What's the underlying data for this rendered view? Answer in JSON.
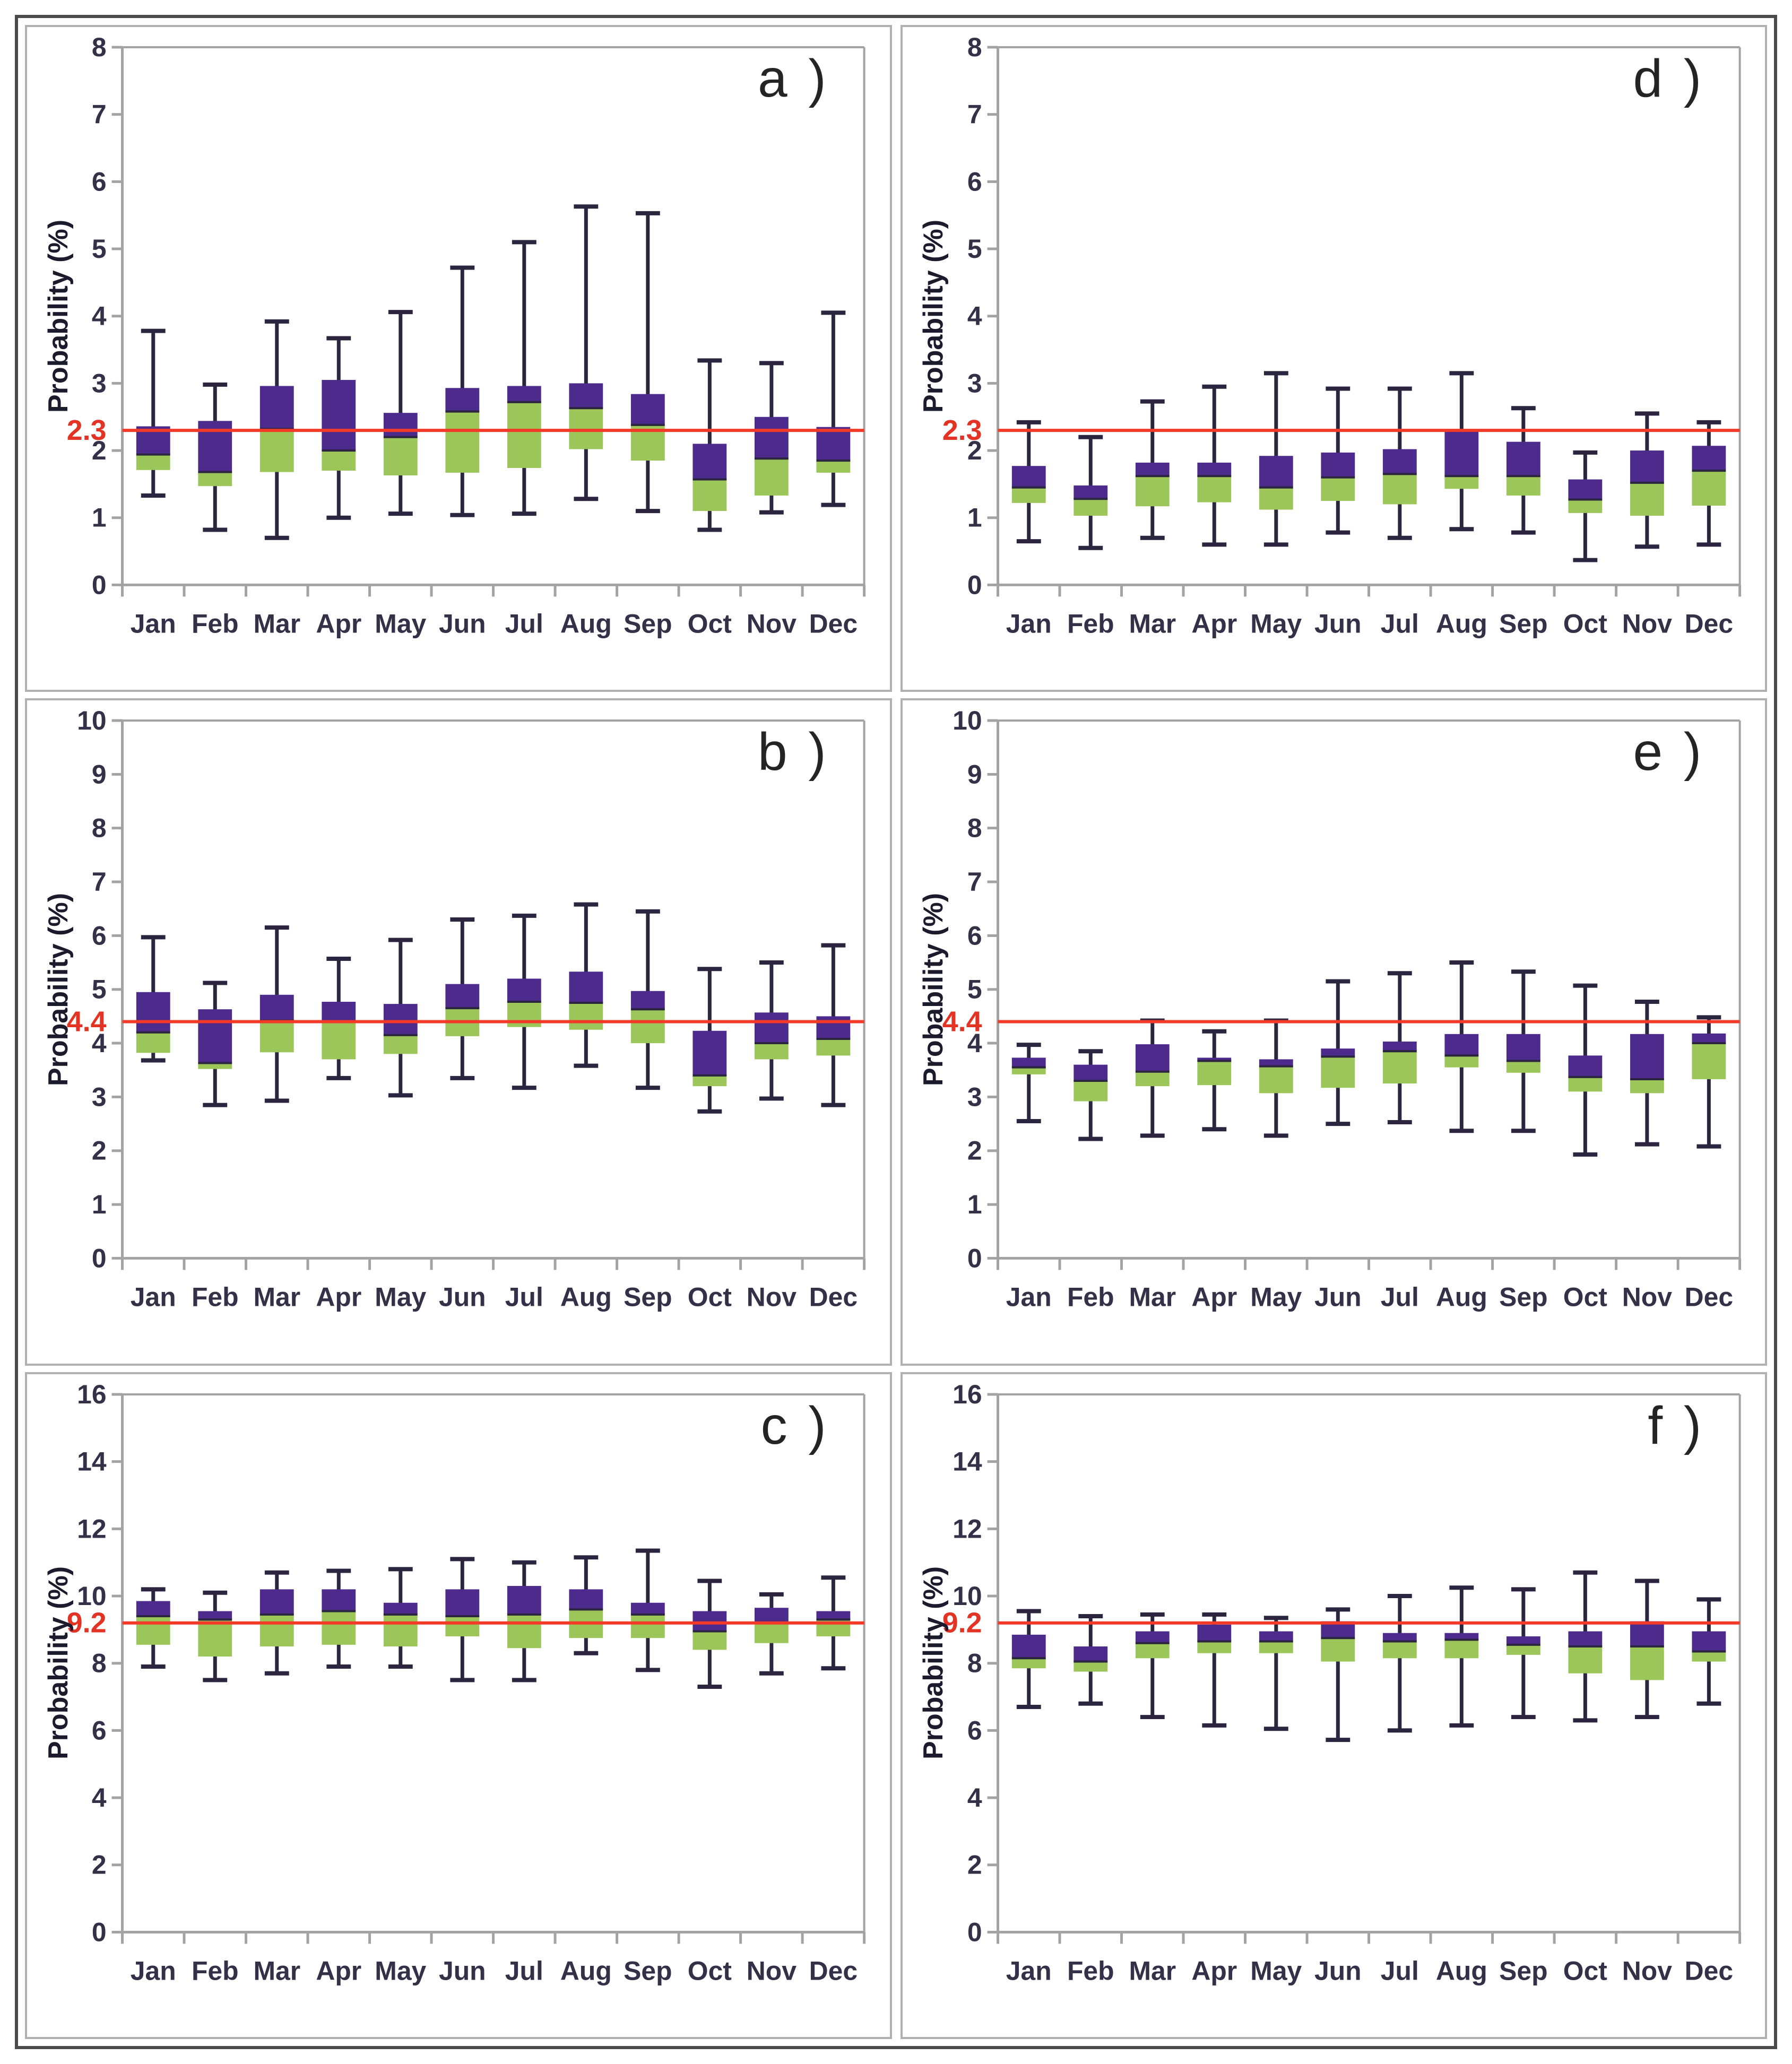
{
  "figure": {
    "colors": {
      "box_upper": "#4d2b8c",
      "box_lower": "#9cc659",
      "whisker": "#2b2540",
      "axis": "#a3a3a3",
      "tick_text": "#333047",
      "ref_line": "#f33a28",
      "ref_text": "#e23325",
      "panel_border": "#b0b0b0",
      "outer_border": "#4b4b4b"
    }
  },
  "chart_data": [
    {
      "type": "box",
      "panel_label": "a )",
      "ylabel": "Probability (%)",
      "ylim": [
        0,
        8
      ],
      "yticks": [
        0,
        1,
        2,
        3,
        4,
        5,
        6,
        7,
        8
      ],
      "ref_line": {
        "value": 2.3,
        "label": "2.3"
      },
      "categories": [
        "Jan",
        "Feb",
        "Mar",
        "Apr",
        "May",
        "Jun",
        "Jul",
        "Aug",
        "Sep",
        "Oct",
        "Nov",
        "Dec"
      ],
      "boxes": [
        {
          "low": 1.33,
          "q1": 1.71,
          "median": 1.94,
          "q3": 2.36,
          "high": 3.78
        },
        {
          "low": 0.82,
          "q1": 1.47,
          "median": 1.68,
          "q3": 2.44,
          "high": 2.98
        },
        {
          "low": 0.7,
          "q1": 1.68,
          "median": 2.32,
          "q3": 2.96,
          "high": 3.92
        },
        {
          "low": 1.0,
          "q1": 1.7,
          "median": 2.0,
          "q3": 3.05,
          "high": 3.67
        },
        {
          "low": 1.06,
          "q1": 1.63,
          "median": 2.2,
          "q3": 2.56,
          "high": 4.06
        },
        {
          "low": 1.04,
          "q1": 1.67,
          "median": 2.58,
          "q3": 2.93,
          "high": 4.72
        },
        {
          "low": 1.06,
          "q1": 1.74,
          "median": 2.72,
          "q3": 2.96,
          "high": 5.1
        },
        {
          "low": 1.28,
          "q1": 2.02,
          "median": 2.63,
          "q3": 3.0,
          "high": 5.63
        },
        {
          "low": 1.1,
          "q1": 1.85,
          "median": 2.38,
          "q3": 2.84,
          "high": 5.53
        },
        {
          "low": 0.82,
          "q1": 1.1,
          "median": 1.57,
          "q3": 2.1,
          "high": 3.34
        },
        {
          "low": 1.08,
          "q1": 1.33,
          "median": 1.88,
          "q3": 2.5,
          "high": 3.3
        },
        {
          "low": 1.19,
          "q1": 1.67,
          "median": 1.85,
          "q3": 2.35,
          "high": 4.05
        }
      ]
    },
    {
      "type": "box",
      "panel_label": "d )",
      "ylabel": "Probability (%)",
      "ylim": [
        0,
        8
      ],
      "yticks": [
        0,
        1,
        2,
        3,
        4,
        5,
        6,
        7,
        8
      ],
      "ref_line": {
        "value": 2.3,
        "label": "2.3"
      },
      "categories": [
        "Jan",
        "Feb",
        "Mar",
        "Apr",
        "May",
        "Jun",
        "Jul",
        "Aug",
        "Sep",
        "Oct",
        "Nov",
        "Dec"
      ],
      "boxes": [
        {
          "low": 0.65,
          "q1": 1.22,
          "median": 1.45,
          "q3": 1.77,
          "high": 2.42
        },
        {
          "low": 0.55,
          "q1": 1.03,
          "median": 1.28,
          "q3": 1.48,
          "high": 2.2
        },
        {
          "low": 0.7,
          "q1": 1.17,
          "median": 1.62,
          "q3": 1.82,
          "high": 2.73
        },
        {
          "low": 0.6,
          "q1": 1.23,
          "median": 1.62,
          "q3": 1.82,
          "high": 2.95
        },
        {
          "low": 0.6,
          "q1": 1.12,
          "median": 1.45,
          "q3": 1.92,
          "high": 3.15
        },
        {
          "low": 0.78,
          "q1": 1.25,
          "median": 1.6,
          "q3": 1.97,
          "high": 2.92
        },
        {
          "low": 0.7,
          "q1": 1.2,
          "median": 1.65,
          "q3": 2.02,
          "high": 2.92
        },
        {
          "low": 0.83,
          "q1": 1.43,
          "median": 1.62,
          "q3": 2.3,
          "high": 3.15
        },
        {
          "low": 0.78,
          "q1": 1.33,
          "median": 1.62,
          "q3": 2.13,
          "high": 2.63
        },
        {
          "low": 0.37,
          "q1": 1.07,
          "median": 1.27,
          "q3": 1.57,
          "high": 1.97
        },
        {
          "low": 0.57,
          "q1": 1.03,
          "median": 1.52,
          "q3": 2.0,
          "high": 2.55
        },
        {
          "low": 0.6,
          "q1": 1.18,
          "median": 1.7,
          "q3": 2.07,
          "high": 2.42
        }
      ]
    },
    {
      "type": "box",
      "panel_label": "b )",
      "ylabel": "Probability (%)",
      "ylim": [
        0,
        10
      ],
      "yticks": [
        0,
        1,
        2,
        3,
        4,
        5,
        6,
        7,
        8,
        9,
        10
      ],
      "ref_line": {
        "value": 4.4,
        "label": "4.4"
      },
      "categories": [
        "Jan",
        "Feb",
        "Mar",
        "Apr",
        "May",
        "Jun",
        "Jul",
        "Aug",
        "Sep",
        "Oct",
        "Nov",
        "Dec"
      ],
      "boxes": [
        {
          "low": 3.68,
          "q1": 3.82,
          "median": 4.2,
          "q3": 4.95,
          "high": 5.97
        },
        {
          "low": 2.85,
          "q1": 3.52,
          "median": 3.63,
          "q3": 4.63,
          "high": 5.12
        },
        {
          "low": 2.93,
          "q1": 3.83,
          "median": 4.42,
          "q3": 4.9,
          "high": 6.15
        },
        {
          "low": 3.35,
          "q1": 3.7,
          "median": 4.4,
          "q3": 4.77,
          "high": 5.57
        },
        {
          "low": 3.03,
          "q1": 3.8,
          "median": 4.15,
          "q3": 4.73,
          "high": 5.92
        },
        {
          "low": 3.35,
          "q1": 4.13,
          "median": 4.65,
          "q3": 5.1,
          "high": 6.3
        },
        {
          "low": 3.17,
          "q1": 4.3,
          "median": 4.77,
          "q3": 5.2,
          "high": 6.37
        },
        {
          "low": 3.58,
          "q1": 4.25,
          "median": 4.75,
          "q3": 5.33,
          "high": 6.58
        },
        {
          "low": 3.17,
          "q1": 4.0,
          "median": 4.63,
          "q3": 4.97,
          "high": 6.45
        },
        {
          "low": 2.73,
          "q1": 3.2,
          "median": 3.4,
          "q3": 4.23,
          "high": 5.38
        },
        {
          "low": 2.97,
          "q1": 3.7,
          "median": 4.0,
          "q3": 4.57,
          "high": 5.5
        },
        {
          "low": 2.85,
          "q1": 3.77,
          "median": 4.08,
          "q3": 4.5,
          "high": 5.82
        }
      ]
    },
    {
      "type": "box",
      "panel_label": "e )",
      "ylabel": "Probability (%)",
      "ylim": [
        0,
        10
      ],
      "yticks": [
        0,
        1,
        2,
        3,
        4,
        5,
        6,
        7,
        8,
        9,
        10
      ],
      "ref_line": {
        "value": 4.4,
        "label": "4.4"
      },
      "categories": [
        "Jan",
        "Feb",
        "Mar",
        "Apr",
        "May",
        "Jun",
        "Jul",
        "Aug",
        "Sep",
        "Oct",
        "Nov",
        "Dec"
      ],
      "boxes": [
        {
          "low": 2.55,
          "q1": 3.42,
          "median": 3.55,
          "q3": 3.73,
          "high": 3.97
        },
        {
          "low": 2.22,
          "q1": 2.92,
          "median": 3.3,
          "q3": 3.6,
          "high": 3.85
        },
        {
          "low": 2.28,
          "q1": 3.2,
          "median": 3.47,
          "q3": 3.98,
          "high": 4.42
        },
        {
          "low": 2.4,
          "q1": 3.22,
          "median": 3.67,
          "q3": 3.73,
          "high": 4.22
        },
        {
          "low": 2.28,
          "q1": 3.07,
          "median": 3.57,
          "q3": 3.7,
          "high": 4.42
        },
        {
          "low": 2.5,
          "q1": 3.17,
          "median": 3.75,
          "q3": 3.9,
          "high": 5.15
        },
        {
          "low": 2.53,
          "q1": 3.25,
          "median": 3.85,
          "q3": 4.03,
          "high": 5.3
        },
        {
          "low": 2.37,
          "q1": 3.55,
          "median": 3.77,
          "q3": 4.17,
          "high": 5.5
        },
        {
          "low": 2.37,
          "q1": 3.45,
          "median": 3.67,
          "q3": 4.17,
          "high": 5.33
        },
        {
          "low": 1.93,
          "q1": 3.1,
          "median": 3.37,
          "q3": 3.77,
          "high": 5.07
        },
        {
          "low": 2.12,
          "q1": 3.07,
          "median": 3.33,
          "q3": 4.17,
          "high": 4.77
        },
        {
          "low": 2.08,
          "q1": 3.33,
          "median": 4.0,
          "q3": 4.18,
          "high": 4.48
        }
      ]
    },
    {
      "type": "box",
      "panel_label": "c )",
      "ylabel": "Probability (%)",
      "ylim": [
        0,
        16
      ],
      "yticks": [
        0,
        2,
        4,
        6,
        8,
        10,
        12,
        14,
        16
      ],
      "ref_line": {
        "value": 9.2,
        "label": "9.2"
      },
      "categories": [
        "Jan",
        "Feb",
        "Mar",
        "Apr",
        "May",
        "Jun",
        "Jul",
        "Aug",
        "Sep",
        "Oct",
        "Nov",
        "Dec"
      ],
      "boxes": [
        {
          "low": 7.9,
          "q1": 8.55,
          "median": 9.4,
          "q3": 9.85,
          "high": 10.2
        },
        {
          "low": 7.5,
          "q1": 8.2,
          "median": 9.3,
          "q3": 9.55,
          "high": 10.1
        },
        {
          "low": 7.7,
          "q1": 8.5,
          "median": 9.45,
          "q3": 10.2,
          "high": 10.7
        },
        {
          "low": 7.9,
          "q1": 8.55,
          "median": 9.55,
          "q3": 10.2,
          "high": 10.75
        },
        {
          "low": 7.9,
          "q1": 8.5,
          "median": 9.45,
          "q3": 9.8,
          "high": 10.8
        },
        {
          "low": 7.5,
          "q1": 8.8,
          "median": 9.4,
          "q3": 10.2,
          "high": 11.1
        },
        {
          "low": 7.5,
          "q1": 8.45,
          "median": 9.45,
          "q3": 10.3,
          "high": 11.0
        },
        {
          "low": 8.3,
          "q1": 8.75,
          "median": 9.6,
          "q3": 10.2,
          "high": 11.15
        },
        {
          "low": 7.8,
          "q1": 8.75,
          "median": 9.45,
          "q3": 9.8,
          "high": 11.35
        },
        {
          "low": 7.3,
          "q1": 8.4,
          "median": 8.95,
          "q3": 9.55,
          "high": 10.45
        },
        {
          "low": 7.7,
          "q1": 8.6,
          "median": 9.2,
          "q3": 9.65,
          "high": 10.05
        },
        {
          "low": 7.85,
          "q1": 8.8,
          "median": 9.3,
          "q3": 9.55,
          "high": 10.55
        }
      ]
    },
    {
      "type": "box",
      "panel_label": "f )",
      "ylabel": "Probability (%)",
      "ylim": [
        0,
        16
      ],
      "yticks": [
        0,
        2,
        4,
        6,
        8,
        10,
        12,
        14,
        16
      ],
      "ref_line": {
        "value": 9.2,
        "label": "9.2"
      },
      "categories": [
        "Jan",
        "Feb",
        "Mar",
        "Apr",
        "May",
        "Jun",
        "Jul",
        "Aug",
        "Sep",
        "Oct",
        "Nov",
        "Dec"
      ],
      "boxes": [
        {
          "low": 6.7,
          "q1": 7.85,
          "median": 8.15,
          "q3": 8.85,
          "high": 9.55
        },
        {
          "low": 6.8,
          "q1": 7.75,
          "median": 8.05,
          "q3": 8.5,
          "high": 9.4
        },
        {
          "low": 6.4,
          "q1": 8.15,
          "median": 8.6,
          "q3": 8.95,
          "high": 9.45
        },
        {
          "low": 6.15,
          "q1": 8.3,
          "median": 8.65,
          "q3": 9.15,
          "high": 9.45
        },
        {
          "low": 6.05,
          "q1": 8.3,
          "median": 8.65,
          "q3": 8.95,
          "high": 9.35
        },
        {
          "low": 5.72,
          "q1": 8.05,
          "median": 8.75,
          "q3": 9.25,
          "high": 9.6
        },
        {
          "low": 6.0,
          "q1": 8.15,
          "median": 8.65,
          "q3": 8.9,
          "high": 10.0
        },
        {
          "low": 6.15,
          "q1": 8.15,
          "median": 8.7,
          "q3": 8.9,
          "high": 10.25
        },
        {
          "low": 6.4,
          "q1": 8.25,
          "median": 8.55,
          "q3": 8.8,
          "high": 10.2
        },
        {
          "low": 6.3,
          "q1": 7.7,
          "median": 8.5,
          "q3": 8.95,
          "high": 10.7
        },
        {
          "low": 6.4,
          "q1": 7.5,
          "median": 8.5,
          "q3": 9.25,
          "high": 10.45
        },
        {
          "low": 6.8,
          "q1": 8.05,
          "median": 8.35,
          "q3": 8.95,
          "high": 9.9
        }
      ]
    }
  ]
}
